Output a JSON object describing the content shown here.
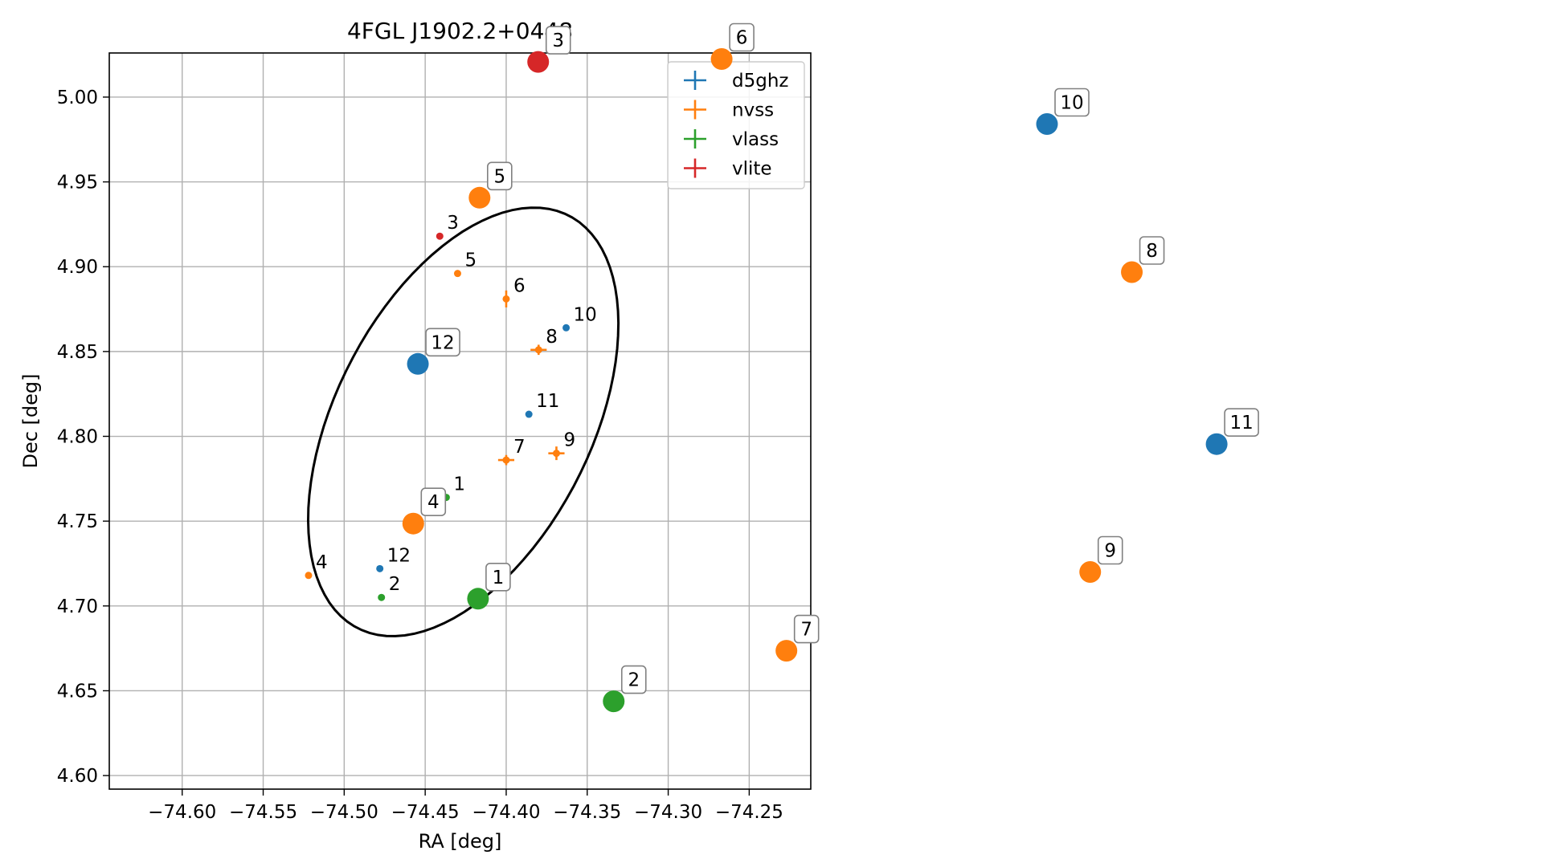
{
  "chart_data": [
    {
      "type": "scatter",
      "title": "4FGL J1902.2+0448",
      "xlabel": "RA [deg]",
      "ylabel": "Dec [deg]",
      "xlim": [
        -74.645,
        -74.212
      ],
      "ylim": [
        4.592,
        5.026
      ],
      "xticks": [
        -74.6,
        -74.55,
        -74.5,
        -74.45,
        -74.4,
        -74.35,
        -74.3,
        -74.25
      ],
      "xtick_labels": [
        "−74.60",
        "−74.55",
        "−74.50",
        "−74.45",
        "−74.40",
        "−74.35",
        "−74.30",
        "−74.25"
      ],
      "yticks": [
        4.6,
        4.65,
        4.7,
        4.75,
        4.8,
        4.85,
        4.9,
        4.95,
        5.0
      ],
      "ytick_labels": [
        "4.60",
        "4.65",
        "4.70",
        "4.75",
        "4.80",
        "4.85",
        "4.90",
        "4.95",
        "5.00"
      ],
      "grid": true,
      "legend_position": "top-right",
      "series": [
        {
          "name": "d5ghz",
          "color": "#1f77b4",
          "points": [
            {
              "label": "10",
              "x": -74.363,
              "y": 4.864
            },
            {
              "label": "11",
              "x": -74.386,
              "y": 4.813
            },
            {
              "label": "12",
              "x": -74.478,
              "y": 4.722
            }
          ]
        },
        {
          "name": "nvss",
          "color": "#ff7f0e",
          "points": [
            {
              "label": "4",
              "x": -74.522,
              "y": 4.718,
              "xerr": 0.0,
              "yerr": 0.0
            },
            {
              "label": "5",
              "x": -74.43,
              "y": 4.896,
              "xerr": 0.0,
              "yerr": 0.0
            },
            {
              "label": "6",
              "x": -74.4,
              "y": 4.881,
              "xerr": 0.002,
              "yerr": 0.005
            },
            {
              "label": "7",
              "x": -74.4,
              "y": 4.786,
              "xerr": 0.005,
              "yerr": 0.003
            },
            {
              "label": "8",
              "x": -74.38,
              "y": 4.851,
              "xerr": 0.005,
              "yerr": 0.003
            },
            {
              "label": "9",
              "x": -74.369,
              "y": 4.79,
              "xerr": 0.005,
              "yerr": 0.004
            }
          ]
        },
        {
          "name": "vlass",
          "color": "#2ca02c",
          "points": [
            {
              "label": "1",
              "x": -74.437,
              "y": 4.764
            },
            {
              "label": "2",
              "x": -74.477,
              "y": 4.705
            }
          ]
        },
        {
          "name": "vlite",
          "color": "#d62728",
          "points": [
            {
              "label": "3",
              "x": -74.441,
              "y": 4.918
            }
          ]
        }
      ],
      "ellipse": {
        "center_ra": -74.4265,
        "center_dec": 4.8085,
        "semi_axis_1": 0.138,
        "semi_axis_2": 0.078,
        "angle_deg": 60.8,
        "color": "#000000"
      }
    },
    {
      "type": "scatter",
      "axes": "off",
      "points": [
        {
          "label": "1",
          "color": "#2ca02c",
          "x": 0.31,
          "y": 0.238
        },
        {
          "label": "2",
          "color": "#2ca02c",
          "x": 0.398,
          "y": 0.096
        },
        {
          "label": "3",
          "color": "#d62728",
          "x": 0.349,
          "y": 0.981
        },
        {
          "label": "4",
          "color": "#ff7f0e",
          "x": 0.268,
          "y": 0.342
        },
        {
          "label": "5",
          "color": "#ff7f0e",
          "x": 0.311,
          "y": 0.793
        },
        {
          "label": "6",
          "color": "#ff7f0e",
          "x": 0.468,
          "y": 0.985
        },
        {
          "label": "7",
          "color": "#ff7f0e",
          "x": 0.51,
          "y": 0.166
        },
        {
          "label": "8",
          "color": "#ff7f0e",
          "x": 0.734,
          "y": 0.69
        },
        {
          "label": "9",
          "color": "#ff7f0e",
          "x": 0.707,
          "y": 0.275
        },
        {
          "label": "10",
          "color": "#1f77b4",
          "x": 0.679,
          "y": 0.895
        },
        {
          "label": "11",
          "color": "#1f77b4",
          "x": 0.789,
          "y": 0.452
        },
        {
          "label": "12",
          "color": "#1f77b4",
          "x": 0.271,
          "y": 0.563
        }
      ]
    }
  ]
}
